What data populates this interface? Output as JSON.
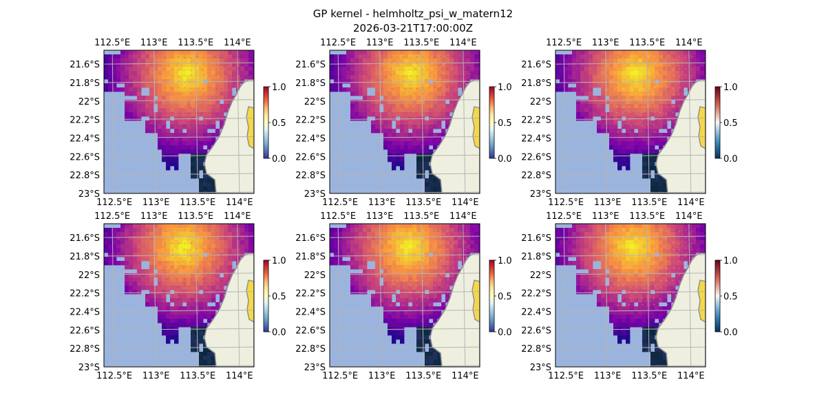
{
  "figure": {
    "title_line1": "GP kernel - helmholtz_psi_w_matern12",
    "title_line2": "2026-03-21T17:00:00Z"
  },
  "axes": {
    "lon_labels": [
      "112.5°E",
      "113°E",
      "113.5°E",
      "114°E"
    ],
    "lon_values": [
      112.5,
      113.0,
      113.5,
      114.0
    ],
    "lat_labels": [
      "21.6°S",
      "21.8°S",
      "22°S",
      "22.2°S",
      "22.4°S",
      "22.6°S",
      "22.8°S",
      "23°S"
    ],
    "lat_values": [
      -21.6,
      -21.8,
      -22.0,
      -22.2,
      -22.4,
      -22.6,
      -22.8,
      -23.0
    ],
    "lon_range": [
      112.4,
      114.2
    ],
    "lat_range": [
      -23.0,
      -21.45
    ],
    "gridlines": true
  },
  "colorbar": {
    "ticks": [
      "0.0",
      "0.5",
      "1.0"
    ],
    "range": [
      0.0,
      1.0
    ]
  },
  "panels": [
    {
      "cmap": "plasma",
      "colorbar_cmap": "RdYlBu_r"
    },
    {
      "cmap": "plasma",
      "colorbar_cmap": "RdYlBu_r"
    },
    {
      "cmap": "plasma",
      "colorbar_cmap": "RdBu_r"
    },
    {
      "cmap": "plasma",
      "colorbar_cmap": "RdYlBu_r"
    },
    {
      "cmap": "plasma",
      "colorbar_cmap": "RdYlBu_r"
    },
    {
      "cmap": "plasma",
      "colorbar_cmap": "RdBu_r"
    }
  ],
  "colors": {
    "ocean": "#9bb4de",
    "land": "#efefe0",
    "coast": "#8c8c8c",
    "grid": "#b4b4b4"
  }
}
